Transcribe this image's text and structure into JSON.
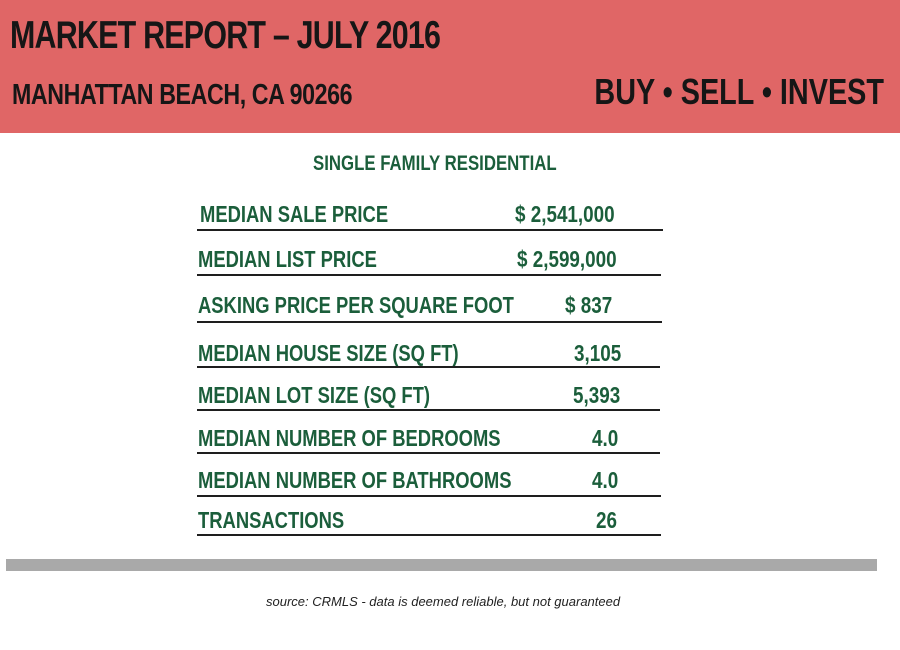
{
  "header": {
    "title": "MARKET REPORT – JULY  2016",
    "location": "MANHATTAN BEACH, CA 90266",
    "tagline": "BUY • SELL • INVEST"
  },
  "section_heading": "SINGLE FAMILY RESIDENTIAL",
  "stats": [
    {
      "label": "MEDIAN SALE PRICE",
      "value": "$ 2,541,000"
    },
    {
      "label": "MEDIAN LIST PRICE",
      "value": "$ 2,599,000"
    },
    {
      "label": "ASKING PRICE PER SQUARE FOOT",
      "value": "$ 837"
    },
    {
      "label": "MEDIAN HOUSE SIZE (SQ FT)",
      "value": "3,105"
    },
    {
      "label": "MEDIAN LOT SIZE (SQ FT)",
      "value": "5,393"
    },
    {
      "label": "MEDIAN NUMBER OF BEDROOMS",
      "value": "4.0"
    },
    {
      "label": "MEDIAN NUMBER OF BATHROOMS",
      "value": "4.0"
    },
    {
      "label": "TRANSACTIONS",
      "value": "26"
    }
  ],
  "source_note": "source:  CRMLS - data is deemed reliable, but not guaranteed",
  "colors": {
    "banner": "#e06666",
    "text_green": "#1b5e3b",
    "divider": "#a9a9a9"
  }
}
